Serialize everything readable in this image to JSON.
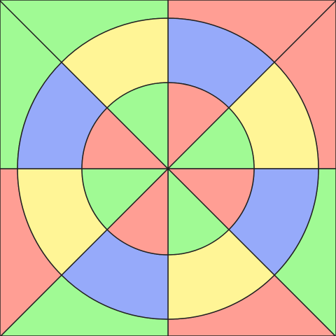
{
  "puzzle": {
    "type": "map-coloring",
    "palette": {
      "red": "#ff9e94",
      "green": "#a0fa94",
      "blue": "#96aafa",
      "yellow": "#fff596"
    },
    "sectors": 8,
    "outer_layer": [
      "red",
      "red",
      "green",
      "red",
      "green",
      "red",
      "green",
      "green"
    ],
    "ring_layer": [
      "blue",
      "yellow",
      "blue",
      "yellow",
      "blue",
      "yellow",
      "blue",
      "yellow"
    ],
    "inner_layer": [
      "red",
      "green",
      "red",
      "green",
      "red",
      "green",
      "red",
      "green"
    ]
  }
}
